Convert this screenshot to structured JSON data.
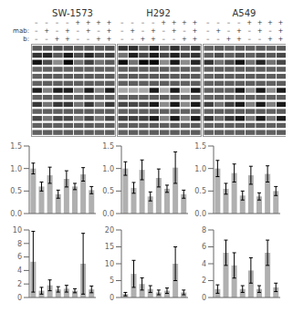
{
  "chart_data": [
    {
      "type": "heatmap",
      "title": "SW-1573",
      "column_labels": [
        [
          "–",
          "–",
          "–",
          "–",
          "+",
          "+",
          "+",
          "+"
        ],
        [
          "–",
          "+",
          "–",
          "+",
          "–",
          "+",
          "–",
          "+"
        ],
        [
          "–",
          "–",
          "+",
          "+",
          "–",
          "–",
          "+",
          "+"
        ]
      ],
      "row_labels": [
        null,
        "mab:",
        "b:"
      ],
      "cells": [
        [
          0.35,
          0.32,
          0.3,
          0.3,
          0.35,
          0.32,
          0.35,
          0.3
        ],
        [
          0.2,
          0.15,
          0.35,
          0.1,
          0.3,
          0.15,
          0.3,
          0.25
        ],
        [
          0.08,
          0.3,
          0.55,
          0.04,
          0.45,
          0.25,
          0.45,
          0.35
        ],
        [
          0.4,
          0.38,
          0.38,
          0.38,
          0.38,
          0.38,
          0.38,
          0.38
        ],
        [
          0.38,
          0.35,
          0.36,
          0.35,
          0.36,
          0.35,
          0.37,
          0.35
        ],
        [
          0.38,
          0.37,
          0.37,
          0.36,
          0.37,
          0.36,
          0.38,
          0.36
        ],
        [
          0.12,
          0.5,
          0.12,
          0.12,
          0.5,
          0.12,
          0.5,
          0.12
        ],
        [
          0.38,
          0.37,
          0.37,
          0.36,
          0.37,
          0.36,
          0.38,
          0.36
        ],
        [
          0.22,
          0.45,
          0.22,
          0.22,
          0.45,
          0.22,
          0.45,
          0.22
        ],
        [
          0.38,
          0.37,
          0.37,
          0.36,
          0.37,
          0.36,
          0.38,
          0.36
        ],
        [
          0.28,
          0.45,
          0.28,
          0.28,
          0.45,
          0.28,
          0.45,
          0.28
        ],
        [
          0.38,
          0.37,
          0.37,
          0.36,
          0.37,
          0.36,
          0.38,
          0.36
        ],
        [
          0.38,
          0.37,
          0.37,
          0.36,
          0.37,
          0.36,
          0.38,
          0.36
        ]
      ]
    },
    {
      "type": "heatmap",
      "title": "H292",
      "column_labels": [
        [
          "–",
          "–",
          "–",
          "–",
          "+",
          "+",
          "+",
          "+"
        ],
        [
          "–",
          "+",
          "–",
          "+",
          "–",
          "+",
          "–",
          "+"
        ],
        [
          "–",
          "–",
          "+",
          "+",
          "–",
          "–",
          "+",
          "+"
        ]
      ],
      "cells": [
        [
          0.2,
          0.18,
          0.35,
          0.12,
          0.35,
          0.18,
          0.35,
          0.22
        ],
        [
          0.45,
          0.12,
          0.28,
          0.1,
          0.28,
          0.12,
          0.28,
          0.2
        ],
        [
          0.06,
          0.45,
          0.04,
          0.04,
          0.55,
          0.1,
          0.55,
          0.15
        ],
        [
          0.38,
          0.37,
          0.37,
          0.36,
          0.37,
          0.36,
          0.38,
          0.36
        ],
        [
          0.38,
          0.35,
          0.36,
          0.35,
          0.36,
          0.35,
          0.37,
          0.35
        ],
        [
          0.38,
          0.37,
          0.37,
          0.36,
          0.37,
          0.36,
          0.38,
          0.36
        ],
        [
          0.65,
          0.65,
          0.65,
          0.1,
          0.65,
          0.1,
          0.65,
          0.1
        ],
        [
          0.38,
          0.37,
          0.37,
          0.36,
          0.37,
          0.36,
          0.38,
          0.36
        ],
        [
          0.28,
          0.28,
          0.28,
          0.1,
          0.55,
          0.1,
          0.55,
          0.1
        ],
        [
          0.38,
          0.37,
          0.37,
          0.36,
          0.37,
          0.36,
          0.38,
          0.36
        ],
        [
          0.25,
          0.25,
          0.25,
          0.1,
          0.5,
          0.1,
          0.5,
          0.1
        ],
        [
          0.38,
          0.37,
          0.37,
          0.36,
          0.37,
          0.36,
          0.38,
          0.36
        ],
        [
          0.38,
          0.37,
          0.37,
          0.36,
          0.37,
          0.36,
          0.38,
          0.36
        ]
      ]
    },
    {
      "type": "heatmap",
      "title": "A549",
      "column_labels": [
        [
          "–",
          "–",
          "–",
          "–",
          "+",
          "+",
          "+",
          "+"
        ],
        [
          "–",
          "+",
          "–",
          "+",
          "–",
          "+",
          "–",
          "+"
        ],
        [
          "–",
          "–",
          "+",
          "+",
          "–",
          "–",
          "+",
          "+"
        ]
      ],
      "cells": [
        [
          0.38,
          0.35,
          0.37,
          0.35,
          0.37,
          0.35,
          0.38,
          0.35
        ],
        [
          0.38,
          0.3,
          0.38,
          0.3,
          0.38,
          0.3,
          0.35,
          0.28
        ],
        [
          0.2,
          0.45,
          0.3,
          0.08,
          0.45,
          0.15,
          0.45,
          0.28
        ],
        [
          0.38,
          0.37,
          0.37,
          0.36,
          0.37,
          0.36,
          0.38,
          0.36
        ],
        [
          0.38,
          0.35,
          0.36,
          0.35,
          0.36,
          0.35,
          0.37,
          0.35
        ],
        [
          0.38,
          0.37,
          0.37,
          0.36,
          0.37,
          0.36,
          0.38,
          0.36
        ],
        [
          0.38,
          0.38,
          0.38,
          0.1,
          0.55,
          0.1,
          0.55,
          0.1
        ],
        [
          0.38,
          0.37,
          0.37,
          0.36,
          0.37,
          0.36,
          0.38,
          0.36
        ],
        [
          0.25,
          0.45,
          0.25,
          0.1,
          0.5,
          0.1,
          0.5,
          0.1
        ],
        [
          0.38,
          0.37,
          0.37,
          0.36,
          0.37,
          0.36,
          0.38,
          0.36
        ],
        [
          0.22,
          0.42,
          0.22,
          0.1,
          0.45,
          0.1,
          0.45,
          0.1
        ],
        [
          0.38,
          0.37,
          0.37,
          0.36,
          0.37,
          0.36,
          0.38,
          0.36
        ],
        [
          0.38,
          0.37,
          0.37,
          0.36,
          0.37,
          0.36,
          0.38,
          0.36
        ]
      ]
    },
    {
      "type": "bar",
      "categories": [
        null,
        null,
        null,
        null,
        null,
        null,
        null,
        null
      ],
      "values": [
        1.0,
        0.6,
        0.85,
        0.43,
        0.77,
        0.6,
        0.87,
        0.52
      ],
      "errors": [
        0.12,
        0.1,
        0.18,
        0.09,
        0.18,
        0.07,
        0.15,
        0.08
      ],
      "color": "#b0b0b0",
      "ylim": [
        0,
        1.5
      ],
      "yticks": [
        {
          "value": 0,
          "label": "0.0"
        },
        0.5,
        {
          "value": 1,
          "label": "1.0"
        },
        1.5
      ]
    },
    {
      "type": "bar",
      "categories": [
        null,
        null,
        null,
        null,
        null,
        null,
        null,
        null
      ],
      "values": [
        1.0,
        0.57,
        0.97,
        0.38,
        0.79,
        0.55,
        1.02,
        0.43
      ],
      "errors": [
        0.15,
        0.12,
        0.22,
        0.1,
        0.2,
        0.08,
        0.35,
        0.09
      ],
      "color": "#b0b0b0",
      "ylim": [
        0,
        1.5
      ],
      "yticks": [
        {
          "value": 0,
          "label": "0.0"
        },
        0.5,
        {
          "value": 1,
          "label": "1.0"
        },
        1.5
      ]
    },
    {
      "type": "bar",
      "categories": [
        null,
        null,
        null,
        null,
        null,
        null,
        null,
        null
      ],
      "values": [
        1.0,
        0.55,
        0.9,
        0.4,
        0.85,
        0.38,
        0.88,
        0.5
      ],
      "errors": [
        0.18,
        0.12,
        0.2,
        0.1,
        0.2,
        0.08,
        0.18,
        0.1
      ],
      "color": "#b0b0b0",
      "ylim": [
        0,
        1.5
      ],
      "yticks": [
        {
          "value": 0,
          "label": "0.0"
        },
        0.5,
        {
          "value": 1,
          "label": "1.0"
        },
        1.5
      ]
    },
    {
      "type": "bar",
      "categories": [
        null,
        null,
        null,
        null,
        null,
        null,
        null,
        null
      ],
      "values": [
        5.3,
        1.0,
        1.8,
        1.2,
        1.3,
        1.0,
        5.0,
        1.2
      ],
      "errors": [
        4.5,
        0.5,
        0.8,
        0.4,
        0.5,
        0.3,
        4.5,
        0.5
      ],
      "color": "#b0b0b0",
      "ylim": [
        0,
        10
      ],
      "yticks": [
        0,
        2,
        4,
        6,
        8,
        10
      ]
    },
    {
      "type": "bar",
      "categories": [
        null,
        null,
        null,
        null,
        null,
        null,
        null,
        null
      ],
      "values": [
        1.0,
        7.0,
        4.0,
        2.5,
        1.5,
        2.0,
        10.0,
        1.5
      ],
      "errors": [
        0.5,
        4.0,
        1.8,
        1.0,
        0.7,
        0.8,
        5.0,
        0.7
      ],
      "color": "#b0b0b0",
      "ylim": [
        0,
        20
      ],
      "yticks": [
        0,
        5,
        10,
        15,
        20
      ]
    },
    {
      "type": "bar",
      "categories": [
        null,
        null,
        null,
        null,
        null,
        null,
        null,
        null
      ],
      "values": [
        1.0,
        5.3,
        3.8,
        1.0,
        3.2,
        1.0,
        5.3,
        1.2
      ],
      "errors": [
        0.5,
        1.5,
        1.5,
        0.4,
        1.5,
        0.4,
        1.5,
        0.5
      ],
      "color": "#b0b0b0",
      "ylim": [
        0,
        8
      ],
      "yticks": [
        0,
        2,
        4,
        6,
        8
      ]
    }
  ]
}
